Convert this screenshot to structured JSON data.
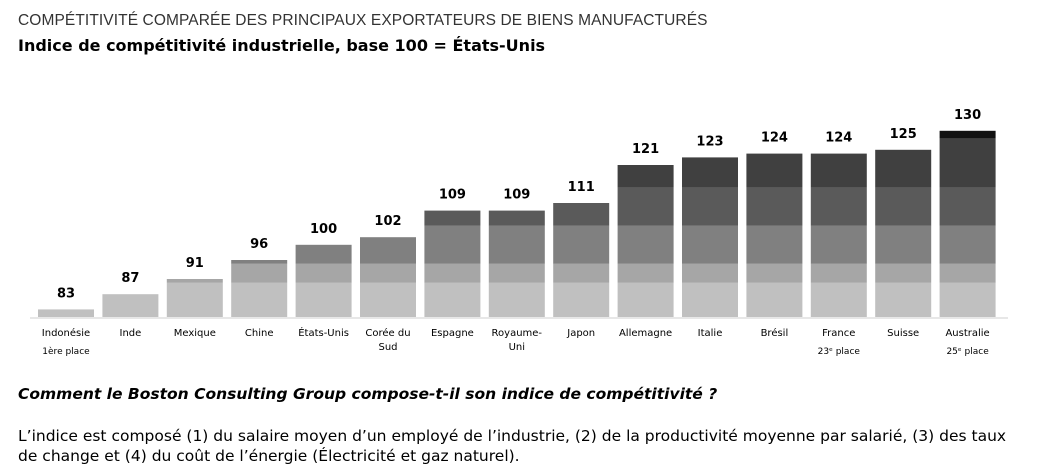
{
  "title": "COMPÉTITIVITÉ COMPARÉE DES PRINCIPAUX EXPORTATEURS DE BIENS MANUFACTURÉS",
  "subtitle": "Indice de compétitivité industrielle, base 100 = États-Unis",
  "question": "Comment le Boston Consulting Group compose-t-il son indice de compétitivité ?",
  "description": "L’indice est composé (1) du salaire moyen d’un employé de l’industrie, (2) de la productivité moyenne par salarié, (3) des taux de change et (4) du coût de l’énergie (Électricité et gaz naturel).",
  "colors": [
    "#c0c0c0",
    "#a6a6a6",
    "#808080",
    "#5a5a5a",
    "#404040",
    "#111111"
  ],
  "chart_data": {
    "type": "bar",
    "stacked_bands": [
      [
        0,
        90
      ],
      [
        90,
        95
      ],
      [
        95,
        105
      ],
      [
        105,
        115
      ],
      [
        115,
        128
      ],
      [
        128,
        130
      ]
    ],
    "categories": [
      {
        "label": [
          "Indonésie"
        ],
        "note": "1ère place",
        "value": 83
      },
      {
        "label": [
          "Inde"
        ],
        "note": "",
        "value": 87
      },
      {
        "label": [
          "Mexique"
        ],
        "note": "",
        "value": 91
      },
      {
        "label": [
          "Chine"
        ],
        "note": "",
        "value": 96
      },
      {
        "label": [
          "États-Unis"
        ],
        "note": "",
        "value": 100
      },
      {
        "label": [
          "Corée du",
          "Sud"
        ],
        "note": "",
        "value": 102
      },
      {
        "label": [
          "Espagne"
        ],
        "note": "",
        "value": 109
      },
      {
        "label": [
          "Royaume-",
          "Uni"
        ],
        "note": "",
        "value": 109
      },
      {
        "label": [
          "Japon"
        ],
        "note": "",
        "value": 111
      },
      {
        "label": [
          "Allemagne"
        ],
        "note": "",
        "value": 121
      },
      {
        "label": [
          "Italie"
        ],
        "note": "",
        "value": 123
      },
      {
        "label": [
          "Brésil"
        ],
        "note": "",
        "value": 124
      },
      {
        "label": [
          "France"
        ],
        "note": "23ᵉ place",
        "value": 124
      },
      {
        "label": [
          "Suisse"
        ],
        "note": "",
        "value": 125
      },
      {
        "label": [
          "Australie"
        ],
        "note": "25ᵉ place",
        "value": 130
      }
    ],
    "ylim": [
      81,
      130
    ],
    "grid": false,
    "legend": "none"
  }
}
